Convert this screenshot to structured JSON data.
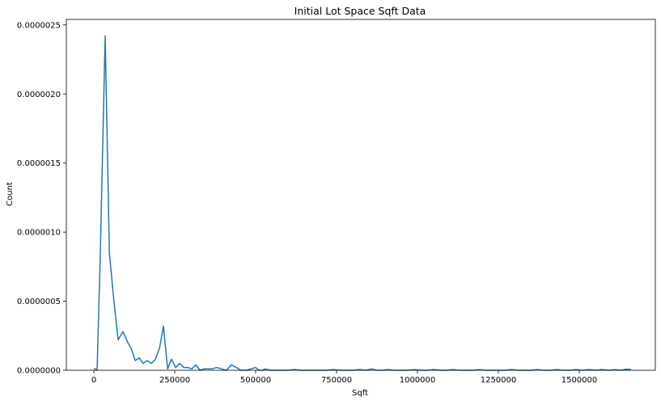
{
  "chart_data": {
    "type": "line",
    "title": "Initial Lot Space Sqft Data",
    "xlabel": "Sqft",
    "ylabel": "Count",
    "xlim": [
      -85000,
      1735000
    ],
    "ylim": [
      0,
      2.54e-06
    ],
    "xticks": [
      0,
      250000,
      500000,
      750000,
      1000000,
      1250000,
      1500000
    ],
    "xtick_labels": [
      "0",
      "250000",
      "500000",
      "750000",
      "1000000",
      "1250000",
      "1500000"
    ],
    "yticks": [
      0,
      5e-07,
      1e-06,
      1.5e-06,
      2e-06,
      2.5e-06
    ],
    "ytick_labels": [
      "0.0000000",
      "0.0000005",
      "0.0000010",
      "0.0000015",
      "0.0000020",
      "0.0000025"
    ],
    "grid": false,
    "color": "#1f77b4",
    "series": [
      {
        "x": [
          0,
          10000,
          20000,
          35000,
          48000,
          60000,
          75000,
          90000,
          105000,
          115000,
          128000,
          140000,
          152000,
          165000,
          178000,
          190000,
          203000,
          215000,
          228000,
          240000,
          253000,
          265000,
          278000,
          290000,
          303000,
          315000,
          328000,
          340000,
          353000,
          365000,
          380000,
          395000,
          410000,
          425000,
          440000,
          455000,
          470000,
          485000,
          500000,
          510000,
          520000,
          530000,
          545000,
          560000,
          580000,
          600000,
          620000,
          640000,
          660000,
          680000,
          700000,
          720000,
          740000,
          760000,
          780000,
          800000,
          820000,
          840000,
          860000,
          875000,
          890000,
          910000,
          930000,
          950000,
          970000,
          990000,
          1010000,
          1030000,
          1050000,
          1070000,
          1090000,
          1110000,
          1130000,
          1150000,
          1170000,
          1190000,
          1210000,
          1230000,
          1250000,
          1270000,
          1290000,
          1310000,
          1330000,
          1350000,
          1370000,
          1390000,
          1410000,
          1430000,
          1450000,
          1470000,
          1490000,
          1510000,
          1530000,
          1550000,
          1570000,
          1590000,
          1610000,
          1630000,
          1645000,
          1660000
        ],
        "y": [
          1.5e-08,
          0.0,
          8.5e-07,
          2.42e-06,
          8.5e-07,
          5.5e-07,
          2.2e-07,
          2.8e-07,
          2e-07,
          1.6e-07,
          7e-08,
          9e-08,
          5e-08,
          7e-08,
          5e-08,
          8e-08,
          1.6e-07,
          3.2e-07,
          1e-08,
          8e-08,
          2e-08,
          5e-08,
          2e-08,
          2e-08,
          1e-08,
          4e-08,
          0.0,
          1e-08,
          1e-08,
          1e-08,
          2e-08,
          1e-08,
          0.0,
          4e-08,
          2e-08,
          0.0,
          0.0,
          1e-08,
          2e-08,
          0.0,
          0.0,
          1e-08,
          0.0,
          0.0,
          0.0,
          0.0,
          5e-09,
          0.0,
          0.0,
          0.0,
          0.0,
          0.0,
          5e-09,
          0.0,
          0.0,
          0.0,
          5e-09,
          0.0,
          1e-08,
          0.0,
          0.0,
          5e-09,
          0.0,
          0.0,
          0.0,
          5e-09,
          0.0,
          0.0,
          5e-09,
          0.0,
          0.0,
          5e-09,
          0.0,
          0.0,
          0.0,
          5e-09,
          0.0,
          0.0,
          0.0,
          0.0,
          5e-09,
          0.0,
          0.0,
          0.0,
          5e-09,
          0.0,
          0.0,
          5e-09,
          0.0,
          0.0,
          5e-09,
          0.0,
          5e-09,
          0.0,
          5e-09,
          0.0,
          5e-09,
          0.0,
          8e-09,
          5e-09
        ]
      }
    ]
  }
}
